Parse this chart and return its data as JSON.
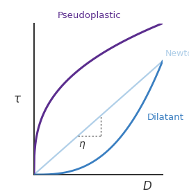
{
  "background_color": "#ffffff",
  "xlim": [
    0,
    1
  ],
  "ylim": [
    0,
    1
  ],
  "xlabel": "D",
  "ylabel": "τ",
  "pseudoplastic_color": "#5b2d8e",
  "newtonian_color": "#b0cfe8",
  "dilatant_color": "#3a7fc1",
  "eta_label": "η",
  "pseudoplastic_label": "Pseudoplastic",
  "newtonian_label": "Newtonian",
  "dilatant_label": "Dilatant",
  "label_fontsize": 9.5,
  "axis_label_fontsize": 12,
  "axis_color": "#333333",
  "eta_box_color": "#555555"
}
